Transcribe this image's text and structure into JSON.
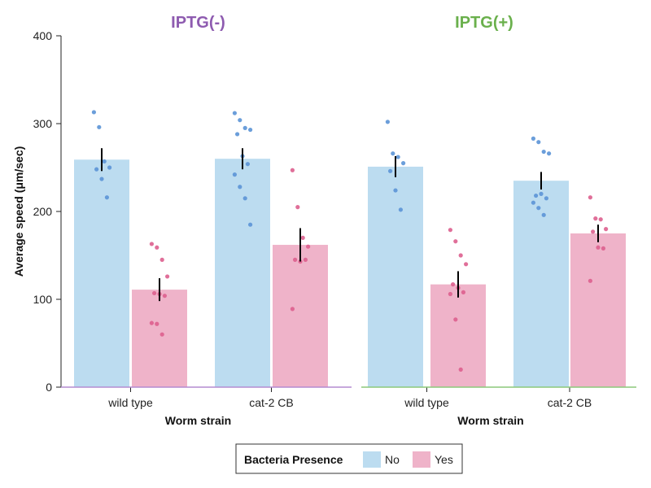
{
  "chart_data": {
    "type": "bar",
    "ylabel": "Average speed (μm/sec)",
    "ylim": [
      0,
      400
    ],
    "yticks": [
      0,
      100,
      200,
      300,
      400
    ],
    "grid": false,
    "panels": [
      {
        "title": "IPTG(-)",
        "title_color": "#8e5bb0",
        "baseline_color": "#b38bd1",
        "xlabel": "Worm strain",
        "categories": [
          "wild type",
          "cat-2 CB"
        ],
        "series": [
          {
            "name": "No",
            "values": [
              259,
              260
            ],
            "errors": [
              13,
              12
            ],
            "points": [
              [
                313,
                296,
                257,
                250,
                248,
                237,
                216
              ],
              [
                312,
                304,
                295,
                293,
                288,
                263,
                254,
                242,
                228,
                215,
                185
              ]
            ]
          },
          {
            "name": "Yes",
            "values": [
              111,
              162
            ],
            "errors": [
              13,
              19
            ],
            "points": [
              [
                163,
                159,
                145,
                126,
                107,
                106,
                104,
                73,
                72,
                60
              ],
              [
                247,
                205,
                170,
                160,
                145,
                143,
                145,
                89
              ]
            ]
          }
        ]
      },
      {
        "title": "IPTG(+)",
        "title_color": "#6ab04c",
        "baseline_color": "#8cc97a",
        "xlabel": "Worm strain",
        "categories": [
          "wild type",
          "cat-2 CB"
        ],
        "series": [
          {
            "name": "No",
            "values": [
              251,
              235
            ],
            "errors": [
              12,
              10
            ],
            "points": [
              [
                302,
                266,
                262,
                255,
                246,
                224,
                202
              ],
              [
                283,
                279,
                268,
                266,
                218,
                220,
                215,
                210,
                204,
                196
              ]
            ]
          },
          {
            "name": "Yes",
            "values": [
              117,
              175
            ],
            "errors": [
              15,
              10
            ],
            "points": [
              [
                179,
                166,
                150,
                140,
                117,
                113,
                108,
                106,
                77,
                20
              ],
              [
                216,
                192,
                191,
                180,
                177,
                159,
                158,
                121
              ]
            ]
          }
        ]
      }
    ],
    "legend": {
      "title": "Bacteria Presence",
      "position": "bottom-center",
      "entries": [
        {
          "label": "No",
          "color": "#bcdcf0"
        },
        {
          "label": "Yes",
          "color": "#efb3c9"
        }
      ]
    },
    "colors": {
      "no_bar": "#bcdcf0",
      "yes_bar": "#efb3c9",
      "no_point": "#5b93d6",
      "yes_point": "#dd5f8e",
      "error_bar": "#000000",
      "axis": "#222222"
    }
  }
}
